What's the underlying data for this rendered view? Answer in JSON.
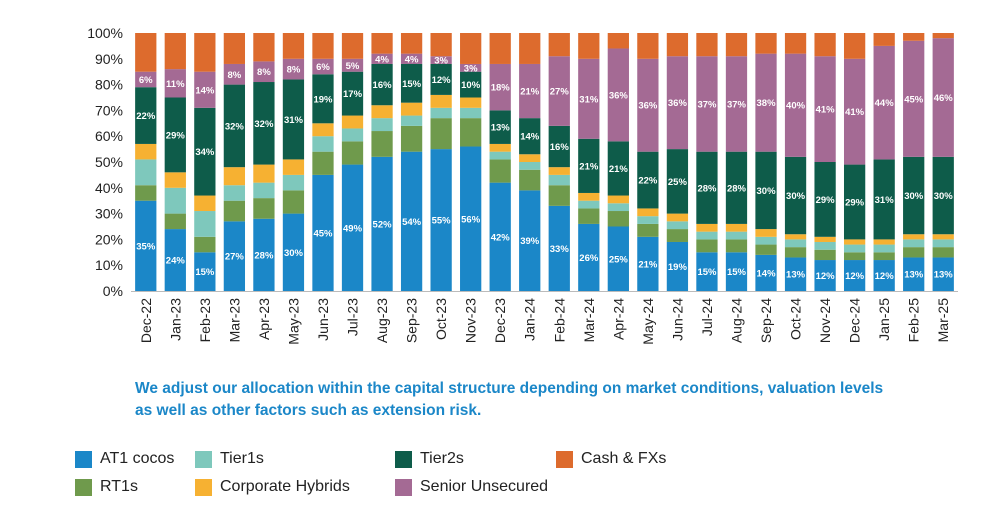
{
  "chart_data": {
    "type": "bar",
    "stacked": true,
    "title": "",
    "xlabel": "",
    "ylabel": "",
    "ylim": [
      0,
      100
    ],
    "y_ticks": [
      "0%",
      "10%",
      "20%",
      "30%",
      "40%",
      "50%",
      "60%",
      "70%",
      "80%",
      "90%",
      "100%"
    ],
    "grid": false,
    "legend_position": "bottom",
    "categories": [
      "Dec-22",
      "Jan-23",
      "Feb-23",
      "Mar-23",
      "Apr-23",
      "May-23",
      "Jun-23",
      "Jul-23",
      "Aug-23",
      "Sep-23",
      "Oct-23",
      "Nov-23",
      "Dec-23",
      "Jan-24",
      "Feb-24",
      "Mar-24",
      "Apr-24",
      "May-24",
      "Jun-24",
      "Jul-24",
      "Aug-24",
      "Sep-24",
      "Oct-24",
      "Nov-24",
      "Dec-24",
      "Jan-25",
      "Feb-25",
      "Mar-25"
    ],
    "series": [
      {
        "name": "AT1 cocos",
        "color": "#1B87C8",
        "values": [
          35,
          24,
          15,
          27,
          28,
          30,
          45,
          49,
          52,
          54,
          55,
          56,
          42,
          39,
          33,
          26,
          25,
          21,
          19,
          15,
          15,
          14,
          13,
          12,
          12,
          12,
          13,
          13
        ],
        "labels_shown": true
      },
      {
        "name": "RT1s",
        "color": "#6F9A4C",
        "values": [
          6,
          6,
          6,
          8,
          8,
          9,
          9,
          9,
          10,
          10,
          12,
          11,
          9,
          8,
          8,
          6,
          6,
          5,
          5,
          5,
          5,
          4,
          4,
          4,
          3,
          3,
          4,
          4
        ],
        "labels_shown": false
      },
      {
        "name": "Tier1s",
        "color": "#7EC8BC",
        "values": [
          10,
          10,
          10,
          6,
          6,
          6,
          6,
          5,
          5,
          4,
          4,
          4,
          3,
          3,
          4,
          3,
          3,
          3,
          3,
          3,
          3,
          3,
          3,
          3,
          3,
          3,
          3,
          3
        ],
        "labels_shown": false
      },
      {
        "name": "Corporate Hybrids",
        "color": "#F6B132",
        "values": [
          6,
          6,
          6,
          7,
          7,
          6,
          5,
          5,
          5,
          5,
          5,
          4,
          3,
          3,
          3,
          3,
          3,
          3,
          3,
          3,
          3,
          3,
          2,
          2,
          2,
          2,
          2,
          2
        ],
        "labels_shown": false
      },
      {
        "name": "Tier2s",
        "color": "#0E5C4A",
        "values": [
          22,
          29,
          34,
          32,
          32,
          31,
          19,
          17,
          16,
          15,
          12,
          10,
          13,
          14,
          16,
          21,
          21,
          22,
          25,
          28,
          28,
          30,
          30,
          29,
          29,
          31,
          30,
          30
        ],
        "labels_shown": true
      },
      {
        "name": "Senior Unsecured",
        "color": "#A46A94",
        "values": [
          6,
          11,
          14,
          8,
          8,
          8,
          6,
          5,
          4,
          4,
          3,
          3,
          18,
          21,
          27,
          31,
          36,
          36,
          36,
          37,
          37,
          38,
          40,
          41,
          41,
          44,
          45,
          46
        ],
        "labels_shown": true
      },
      {
        "name": "Cash & FXs",
        "color": "#DD6B2D",
        "values": [
          15,
          14,
          15,
          12,
          11,
          10,
          10,
          10,
          8,
          8,
          9,
          12,
          12,
          12,
          9,
          10,
          6,
          10,
          9,
          9,
          9,
          8,
          8,
          9,
          10,
          5,
          3,
          2
        ],
        "labels_shown": false
      }
    ]
  },
  "caption": "We adjust our allocation within the capital structure depending on market conditions, valuation levels as well as other factors such as extension risk.",
  "legend": [
    {
      "label": "AT1 cocos",
      "color": "#1B87C8"
    },
    {
      "label": "Tier1s",
      "color": "#7EC8BC"
    },
    {
      "label": "Tier2s",
      "color": "#0E5C4A"
    },
    {
      "label": "Cash & FXs",
      "color": "#DD6B2D"
    },
    {
      "label": "RT1s",
      "color": "#6F9A4C"
    },
    {
      "label": "Corporate Hybrids",
      "color": "#F6B132"
    },
    {
      "label": "Senior Unsecured",
      "color": "#A46A94"
    }
  ]
}
